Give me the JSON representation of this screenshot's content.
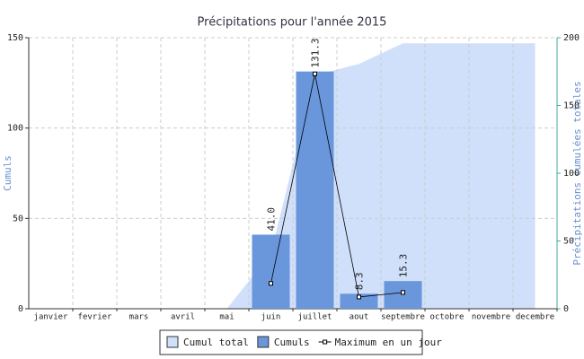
{
  "chart_data": {
    "type": "bar",
    "title": "Précipitations pour l'année 2015",
    "ylabel": "Cumuls",
    "y2label": "Précipitations cumulées totales",
    "categories": [
      "janvier",
      "fevrier",
      "mars",
      "avril",
      "mai",
      "juin",
      "juillet",
      "aout",
      "septembre",
      "octobre",
      "novembre",
      "decembre"
    ],
    "series": [
      {
        "name": "Cumul total",
        "type": "area",
        "axis": "y2",
        "color": "#d0dffa",
        "values": [
          0,
          0,
          0,
          0,
          0,
          41,
          172.3,
          180.6,
          195.9,
          195.9,
          195.9,
          195.9
        ]
      },
      {
        "name": "Cumuls",
        "type": "bar",
        "color": "#6a96dc",
        "values": [
          null,
          null,
          null,
          null,
          null,
          41.0,
          131.3,
          8.3,
          15.3,
          null,
          null,
          null
        ],
        "value_labels": [
          null,
          null,
          null,
          null,
          null,
          "41.0",
          "131.3",
          "8.3",
          "15.3",
          null,
          null,
          null
        ]
      },
      {
        "name": "Maximum en un jour",
        "type": "line",
        "color": "#000000",
        "values": [
          null,
          null,
          null,
          null,
          null,
          14,
          130,
          6.5,
          9,
          null,
          null,
          null
        ]
      }
    ],
    "ylim": [
      0,
      150
    ],
    "yticks": [
      0,
      50,
      100,
      150
    ],
    "y2lim": [
      0,
      200
    ],
    "y2ticks": [
      0,
      50,
      100,
      150,
      200
    ],
    "grid": true
  }
}
